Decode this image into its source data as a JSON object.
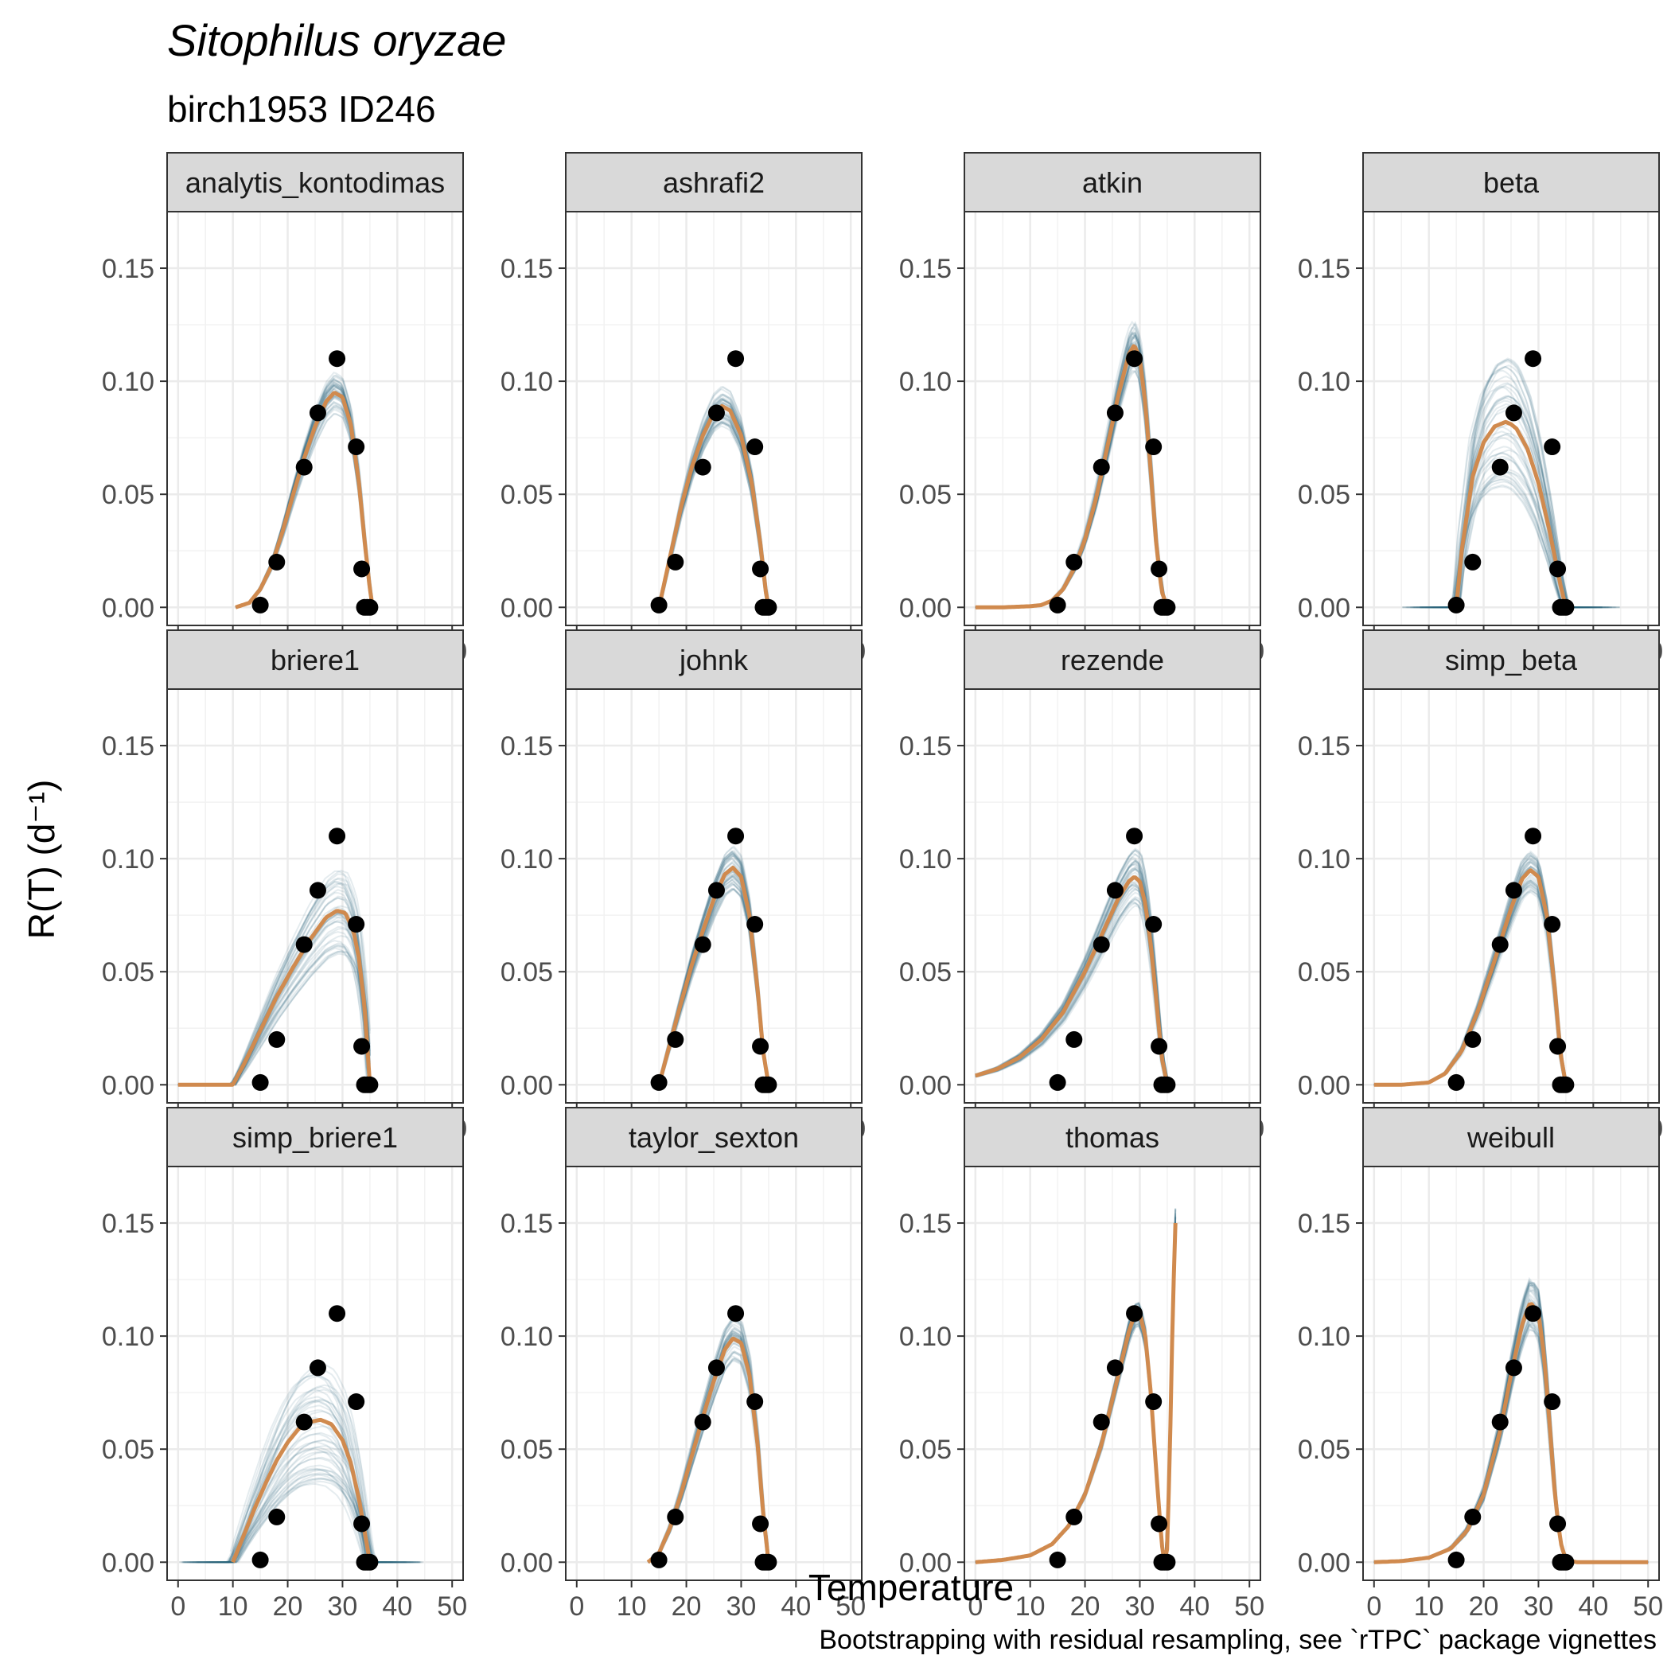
{
  "title": "Sitophilus oryzae",
  "subtitle": "birch1953 ID246",
  "caption": "Bootstrapping with residual resampling, see `rTPC` package vignettes",
  "colors": {
    "fit": "#d08a4e",
    "boot": "#2d5f7a",
    "points": "#000000",
    "strip_bg": "#d9d9d9",
    "grid": "#ebebeb"
  },
  "chart_data": {
    "type": "line",
    "layout": "facet-grid-3x4",
    "xlabel": "Temperature",
    "ylabel": "R(T) (d⁻¹)",
    "xlim": [
      -2,
      52
    ],
    "ylim": [
      -0.008,
      0.175
    ],
    "x_ticks": [
      0,
      10,
      20,
      30,
      40,
      50
    ],
    "y_ticks": [
      0.0,
      0.05,
      0.1,
      0.15
    ],
    "y_tick_labels": [
      "0.00",
      "0.05",
      "0.10",
      "0.15"
    ],
    "points": {
      "x": [
        15,
        18,
        23,
        25.5,
        29,
        32.5,
        33.5,
        34,
        34.5,
        35
      ],
      "y": [
        0.001,
        0.02,
        0.062,
        0.086,
        0.11,
        0.071,
        0.017,
        0.0,
        0.0,
        0.0
      ]
    },
    "panels": [
      {
        "name": "analytis_kontodimas",
        "fit": {
          "x": [
            10.5,
            13,
            15,
            17,
            19,
            21,
            23,
            25,
            27,
            28.5,
            30,
            31.5,
            33,
            34,
            35,
            35.5
          ],
          "y": [
            0.0,
            0.002,
            0.008,
            0.018,
            0.033,
            0.05,
            0.066,
            0.08,
            0.091,
            0.095,
            0.093,
            0.081,
            0.055,
            0.03,
            0.008,
            0.0
          ]
        }
      },
      {
        "name": "ashrafi2",
        "fit": {
          "x": [
            15,
            17,
            19,
            21,
            23,
            25,
            26.5,
            28,
            30,
            32,
            33.5,
            34.5,
            35
          ],
          "y": [
            0.0,
            0.022,
            0.044,
            0.062,
            0.076,
            0.086,
            0.089,
            0.087,
            0.076,
            0.054,
            0.028,
            0.007,
            0.0
          ]
        }
      },
      {
        "name": "atkin",
        "fit": {
          "x": [
            0,
            5,
            10,
            12,
            14,
            16,
            18,
            20,
            22,
            24,
            26,
            28,
            29,
            30,
            31,
            32,
            33,
            34,
            35
          ],
          "y": [
            0.0,
            0.0,
            0.0005,
            0.001,
            0.003,
            0.008,
            0.017,
            0.03,
            0.048,
            0.07,
            0.093,
            0.112,
            0.116,
            0.11,
            0.09,
            0.06,
            0.028,
            0.007,
            0.0
          ]
        }
      },
      {
        "name": "beta",
        "fit": {
          "x": [
            15,
            16,
            18,
            20,
            22,
            24,
            25,
            26,
            28,
            30,
            32,
            34,
            35
          ],
          "y": [
            0.0,
            0.025,
            0.058,
            0.073,
            0.08,
            0.082,
            0.081,
            0.079,
            0.07,
            0.055,
            0.034,
            0.01,
            0.0
          ]
        }
      },
      {
        "name": "briere1",
        "fit": {
          "x": [
            0,
            5,
            10,
            12,
            15,
            18,
            21,
            24,
            27,
            29,
            30.5,
            32,
            33,
            34,
            35
          ],
          "y": [
            0.0,
            0.0,
            0.0,
            0.009,
            0.024,
            0.039,
            0.052,
            0.064,
            0.074,
            0.077,
            0.076,
            0.068,
            0.056,
            0.035,
            0.0
          ]
        }
      },
      {
        "name": "johnk",
        "fit": {
          "x": [
            15,
            17,
            19,
            21,
            23,
            25,
            27,
            28.5,
            30,
            31.5,
            33,
            34,
            35
          ],
          "y": [
            0.0,
            0.018,
            0.036,
            0.053,
            0.068,
            0.082,
            0.093,
            0.096,
            0.092,
            0.075,
            0.042,
            0.015,
            0.0
          ]
        }
      },
      {
        "name": "rezende",
        "fit": {
          "x": [
            0,
            4,
            8,
            12,
            16,
            20,
            23,
            26,
            28,
            29,
            30,
            31,
            32,
            33,
            34,
            35
          ],
          "y": [
            0.004,
            0.007,
            0.012,
            0.02,
            0.032,
            0.05,
            0.066,
            0.082,
            0.09,
            0.092,
            0.09,
            0.08,
            0.062,
            0.038,
            0.012,
            0.0
          ]
        }
      },
      {
        "name": "simp_beta",
        "fit": {
          "x": [
            0,
            5,
            10,
            13,
            16,
            19,
            22,
            25,
            27,
            28.5,
            30,
            31.5,
            33,
            34,
            35
          ],
          "y": [
            0.0,
            0.0,
            0.001,
            0.005,
            0.015,
            0.033,
            0.055,
            0.078,
            0.091,
            0.095,
            0.092,
            0.075,
            0.042,
            0.014,
            0.0
          ]
        }
      },
      {
        "name": "simp_briere1",
        "fit": {
          "x": [
            10,
            12,
            14,
            16,
            18,
            20,
            22,
            24,
            26,
            28,
            30,
            31.5,
            33,
            34,
            35
          ],
          "y": [
            0.0,
            0.012,
            0.024,
            0.035,
            0.045,
            0.053,
            0.059,
            0.062,
            0.063,
            0.061,
            0.054,
            0.044,
            0.028,
            0.014,
            0.0
          ]
        }
      },
      {
        "name": "taylor_sexton",
        "fit": {
          "x": [
            13,
            15,
            17,
            19,
            21,
            23,
            25,
            27,
            28.5,
            30,
            31.5,
            33,
            34,
            35
          ],
          "y": [
            0.0,
            0.004,
            0.015,
            0.03,
            0.047,
            0.064,
            0.08,
            0.094,
            0.099,
            0.097,
            0.083,
            0.052,
            0.022,
            0.0
          ]
        }
      },
      {
        "name": "thomas",
        "fit": {
          "x": [
            0,
            5,
            10,
            14,
            17,
            20,
            23,
            26,
            28,
            29,
            30,
            31,
            32,
            33,
            34,
            34.5,
            35,
            35.5,
            36,
            36.5
          ],
          "y": [
            0.0,
            0.001,
            0.003,
            0.008,
            0.016,
            0.03,
            0.052,
            0.082,
            0.102,
            0.109,
            0.11,
            0.1,
            0.075,
            0.04,
            0.008,
            0.0,
            0.006,
            0.05,
            0.11,
            0.15
          ]
        }
      },
      {
        "name": "weibull",
        "fit": {
          "x": [
            0,
            5,
            10,
            14,
            17,
            20,
            23,
            25,
            27,
            28.5,
            30,
            31,
            32,
            33,
            34,
            35,
            37,
            40,
            45,
            50
          ],
          "y": [
            0.0,
            0.0005,
            0.002,
            0.006,
            0.014,
            0.03,
            0.058,
            0.083,
            0.105,
            0.115,
            0.11,
            0.092,
            0.062,
            0.03,
            0.009,
            0.001,
            0.0,
            0.0,
            0.0,
            0.0
          ]
        }
      }
    ]
  }
}
